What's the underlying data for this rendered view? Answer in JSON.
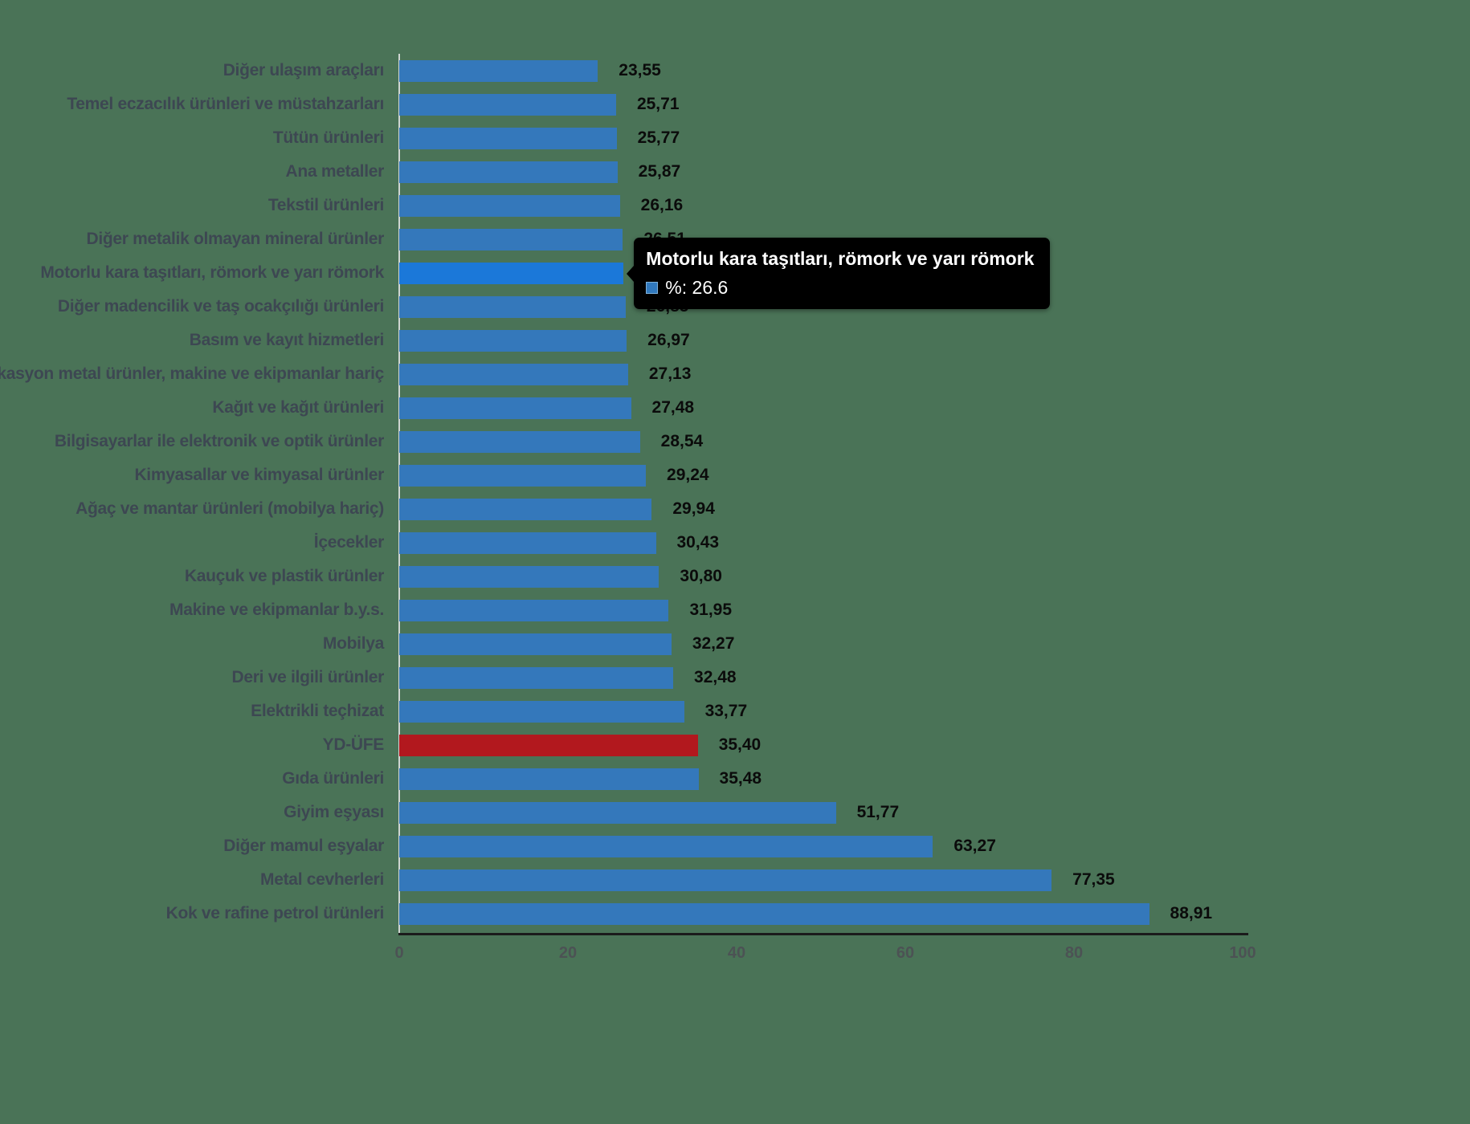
{
  "background_color": "#4A7357",
  "chart_data": {
    "type": "bar",
    "orientation": "horizontal",
    "title": "",
    "xlabel": "",
    "ylabel": "",
    "xlim": [
      0,
      100
    ],
    "x_ticks": [
      0,
      20,
      40,
      60,
      80,
      100
    ],
    "grid": false,
    "legend": "none",
    "colors": {
      "bar_default": "#3478BB",
      "bar_hover": "#1B78D9",
      "bar_accent": "#B2181E",
      "category_label": "#3D4752",
      "value_label": "#0B0B0B",
      "tick_label": "#4C5254",
      "axis_line": "#1B1B1B"
    },
    "bars": [
      {
        "label": "Diğer ulaşım araçları",
        "value": 23.55,
        "display": "23,55",
        "role": "default"
      },
      {
        "label": "Temel eczacılık ürünleri ve müstahzarları",
        "value": 25.71,
        "display": "25,71",
        "role": "default"
      },
      {
        "label": "Tütün ürünleri",
        "value": 25.77,
        "display": "25,77",
        "role": "default"
      },
      {
        "label": "Ana metaller",
        "value": 25.87,
        "display": "25,87",
        "role": "default"
      },
      {
        "label": "Tekstil ürünleri",
        "value": 26.16,
        "display": "26,16",
        "role": "default"
      },
      {
        "label": "Diğer metalik olmayan mineral ürünler",
        "value": 26.51,
        "display": "26,51",
        "role": "default"
      },
      {
        "label": "Motorlu kara taşıtları, römork ve yarı römork",
        "value": 26.6,
        "display": "26,60",
        "role": "hover"
      },
      {
        "label": "Diğer madencilik ve taş ocakçılığı ürünleri",
        "value": 26.85,
        "display": "26,85",
        "role": "default"
      },
      {
        "label": "Basım ve kayıt hizmetleri",
        "value": 26.97,
        "display": "26,97",
        "role": "default"
      },
      {
        "label": "Fabrikasyon metal ürünler, makine ve ekipmanlar hariç",
        "value": 27.13,
        "display": "27,13",
        "role": "default"
      },
      {
        "label": "Kağıt ve kağıt ürünleri",
        "value": 27.48,
        "display": "27,48",
        "role": "default"
      },
      {
        "label": "Bilgisayarlar ile elektronik ve optik ürünler",
        "value": 28.54,
        "display": "28,54",
        "role": "default"
      },
      {
        "label": "Kimyasallar ve kimyasal ürünler",
        "value": 29.24,
        "display": "29,24",
        "role": "default"
      },
      {
        "label": "Ağaç ve mantar ürünleri (mobilya hariç)",
        "value": 29.94,
        "display": "29,94",
        "role": "default"
      },
      {
        "label": "İçecekler",
        "value": 30.43,
        "display": "30,43",
        "role": "default"
      },
      {
        "label": "Kauçuk ve plastik ürünler",
        "value": 30.8,
        "display": "30,80",
        "role": "default"
      },
      {
        "label": "Makine ve ekipmanlar b.y.s.",
        "value": 31.95,
        "display": "31,95",
        "role": "default"
      },
      {
        "label": "Mobilya",
        "value": 32.27,
        "display": "32,27",
        "role": "default"
      },
      {
        "label": "Deri ve ilgili ürünler",
        "value": 32.48,
        "display": "32,48",
        "role": "default"
      },
      {
        "label": "Elektrikli teçhizat",
        "value": 33.77,
        "display": "33,77",
        "role": "default"
      },
      {
        "label": "YD-ÜFE",
        "value": 35.4,
        "display": "35,40",
        "role": "accent"
      },
      {
        "label": "Gıda ürünleri",
        "value": 35.48,
        "display": "35,48",
        "role": "default"
      },
      {
        "label": "Giyim eşyası",
        "value": 51.77,
        "display": "51,77",
        "role": "default"
      },
      {
        "label": "Diğer mamul eşyalar",
        "value": 63.27,
        "display": "63,27",
        "role": "default"
      },
      {
        "label": "Metal cevherleri",
        "value": 77.35,
        "display": "77,35",
        "role": "default"
      },
      {
        "label": "Kok ve rafine petrol ürünleri",
        "value": 88.91,
        "display": "88,91",
        "role": "default"
      }
    ]
  },
  "tooltip": {
    "title": "Motorlu kara taşıtları, römork ve yarı römork",
    "series_label": "%",
    "value": "26.6",
    "text": "%: 26.6",
    "swatch_color": "#3179BE"
  }
}
